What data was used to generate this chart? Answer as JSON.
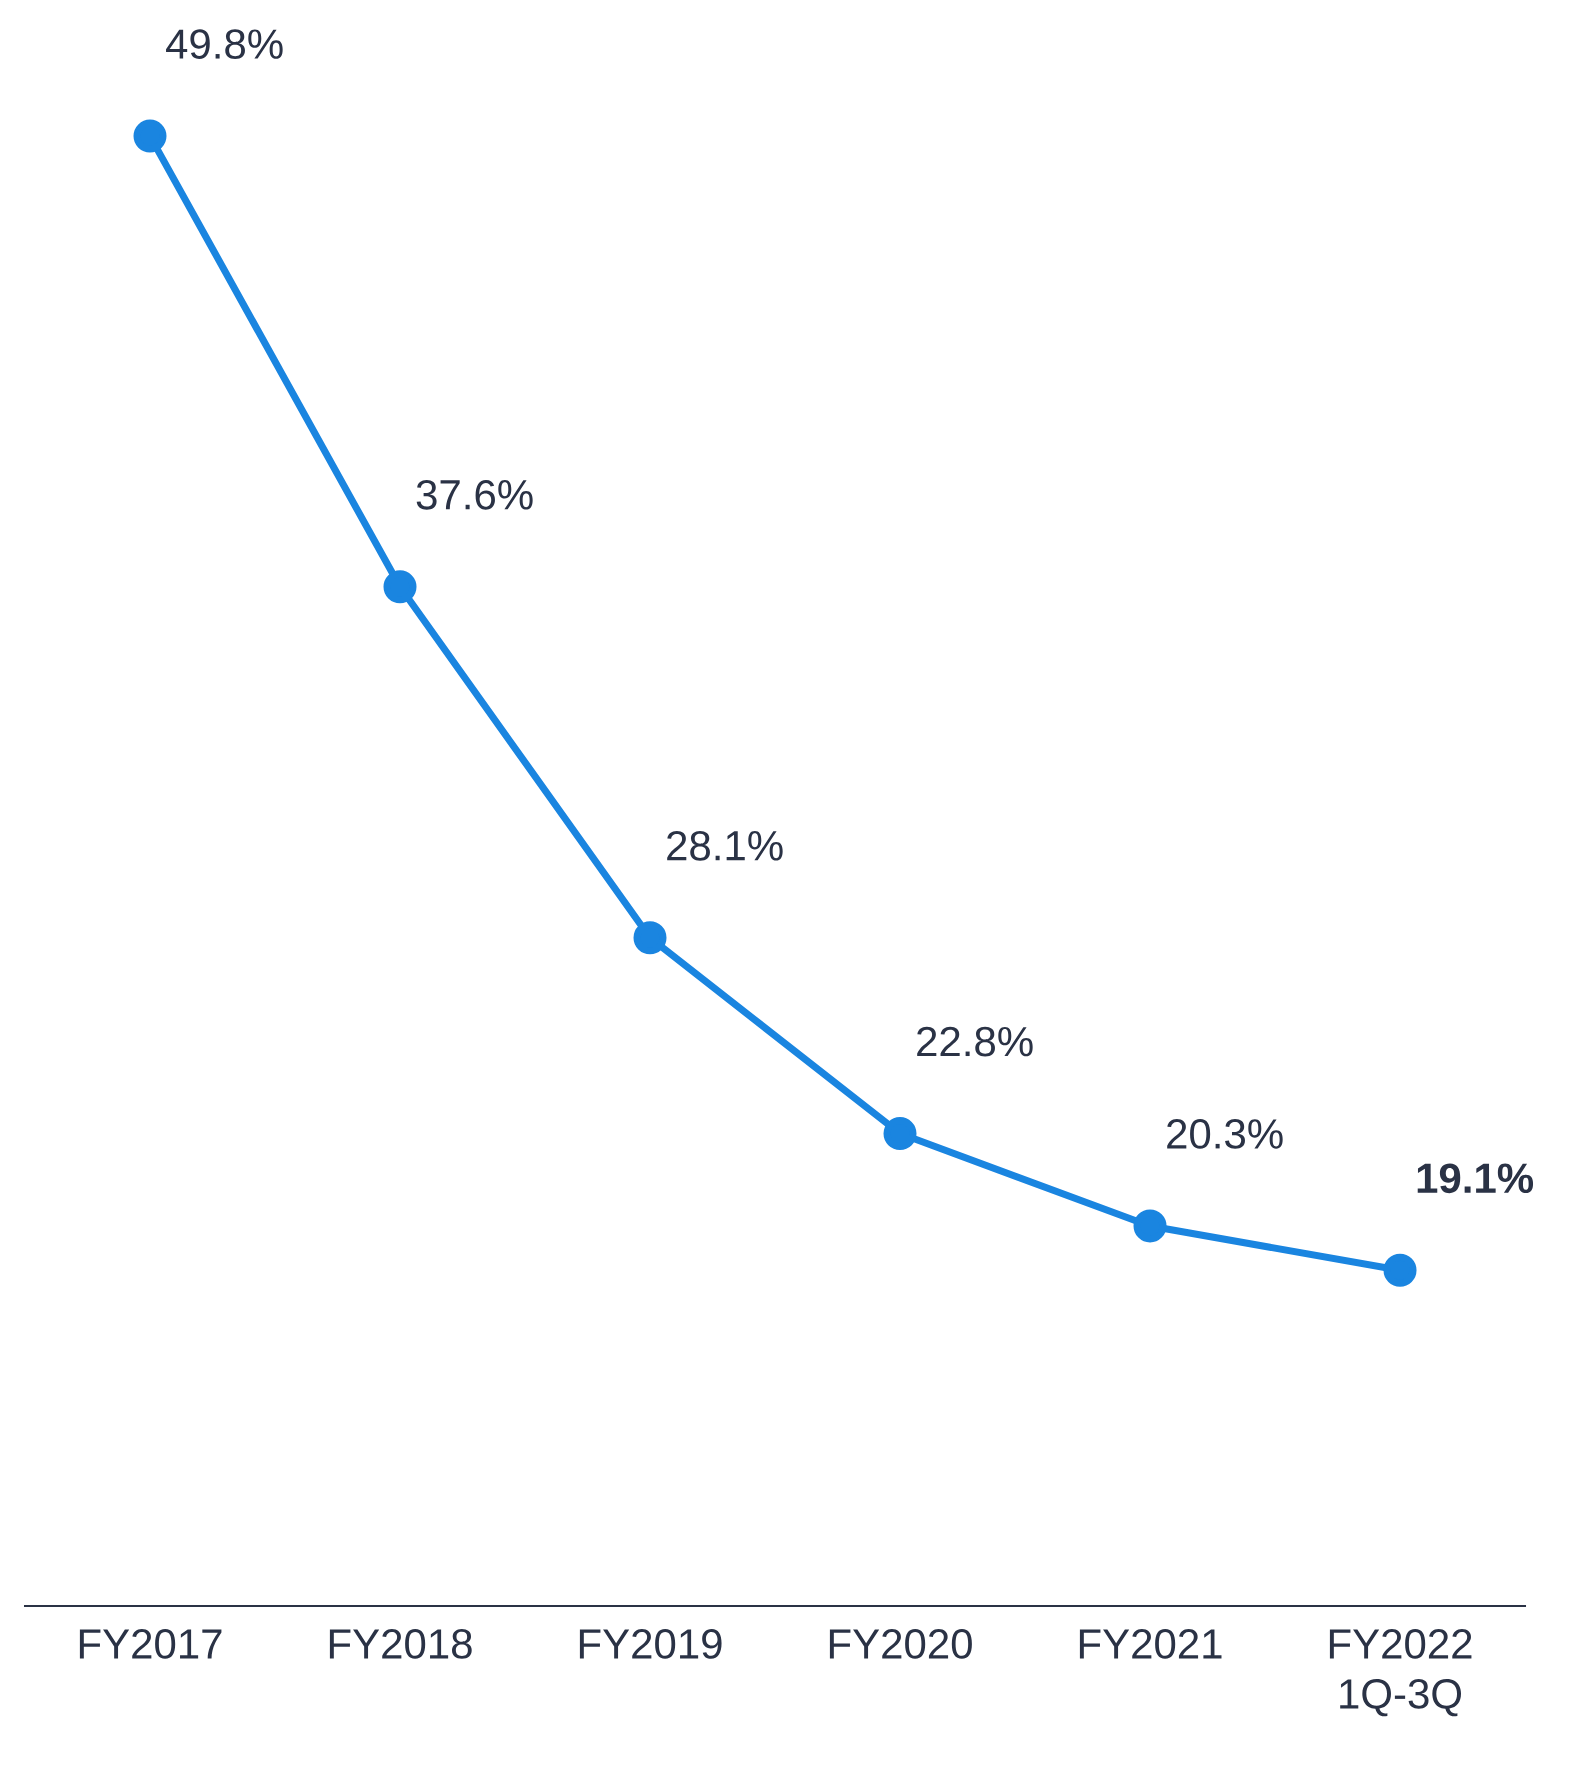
{
  "chart_data": {
    "type": "line",
    "categories": [
      "FY2017",
      "FY2018",
      "FY2019",
      "FY2020",
      "FY2021",
      "FY2022 1Q-3Q"
    ],
    "values": [
      49.8,
      37.6,
      28.1,
      22.8,
      20.3,
      19.1
    ],
    "value_labels": [
      "49.8%",
      "37.6%",
      "28.1%",
      "22.8%",
      "20.3%",
      "**19.1%**"
    ],
    "color": "#1a85e0",
    "marker": "circle",
    "line_style": "solid"
  }
}
